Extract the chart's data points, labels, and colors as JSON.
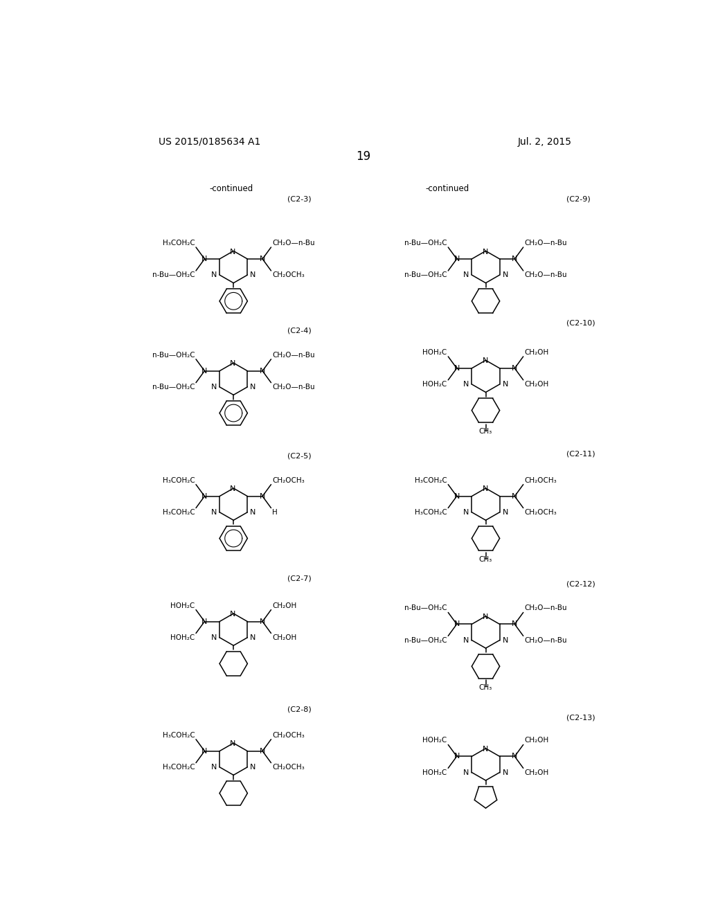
{
  "title_left": "US 2015/0185634 A1",
  "title_right": "Jul. 2, 2015",
  "page_number": "19",
  "bg": "#ffffff"
}
